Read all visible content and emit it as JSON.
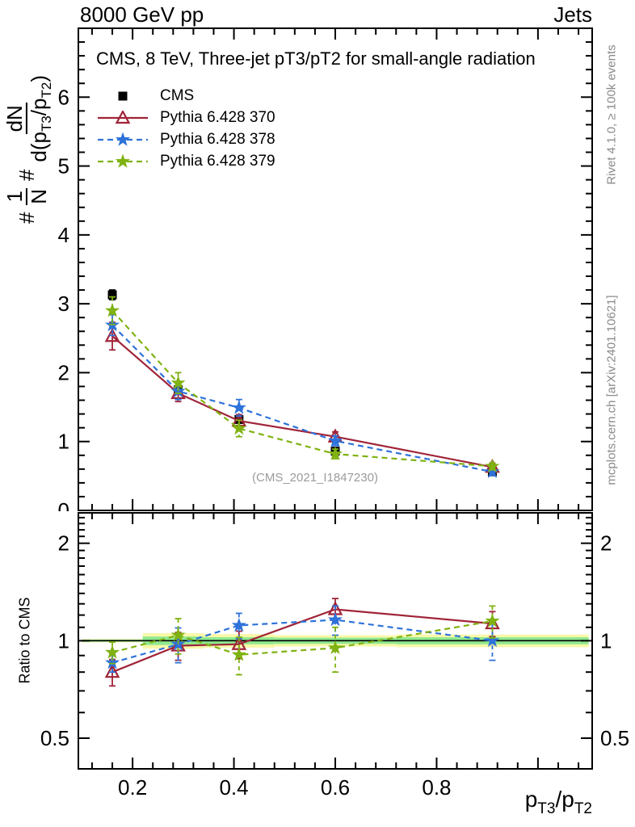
{
  "header": {
    "left": "8000 GeV pp",
    "right": "Jets"
  },
  "side_notes": {
    "top": "Rivet 4.1.0, ≥ 100k events",
    "bottom": "mcplots.cern.ch [arXiv:2401.10621]",
    "color": "#8a8a8a"
  },
  "chart_data": {
    "type": "line",
    "title": "CMS, 8 TeV, Three-jet pT3/pT2 for small-angle radiation",
    "watermark": "(CMS_2021_I1847230)",
    "watermark_color": "#9b9b9b",
    "xlabel": "p_T3/p_T2",
    "xlabel_parts": {
      "a": "p",
      "b": "T3",
      "c": "/p",
      "d": "T2"
    },
    "ylabel_main": "#1/N #dN/d(p_T3/p_T2)",
    "ylabel_main_parts": {
      "hash": "#",
      "n1": "1",
      "d1": "N",
      "n2": "dN",
      "d2a": "d(p",
      "d2b": "T3",
      "d2c": "/p",
      "d2d": "T2",
      "d2e": ")"
    },
    "ylabel_ratio": "Ratio to CMS",
    "axes": {
      "xmin": 0.093,
      "xmax": 1.107,
      "ymin": 0.0,
      "ymax": 7.0,
      "ratio_ymin": 0.402,
      "ratio_ymax": 2.483,
      "ratio_log": true,
      "x_major": [
        0.2,
        0.4,
        0.6,
        0.8,
        1.0
      ],
      "x_tick_labels": [
        "0.2",
        "0.4",
        "0.6",
        "0.8",
        ""
      ],
      "x_minor_step": 0.04,
      "main_y_major": [
        0,
        1,
        2,
        3,
        4,
        5,
        6
      ],
      "main_y_tick_labels": [
        "0",
        "1",
        "2",
        "3",
        "4",
        "5",
        "6"
      ],
      "main_y_minor_step": 0.2,
      "ratio_y_major": [
        0.5,
        1,
        2
      ],
      "ratio_y_tick_labels": [
        "0.5",
        "1",
        "2"
      ],
      "ratio_y_minor": [
        0.6,
        0.7,
        0.8,
        0.9,
        1.1,
        1.2,
        1.3,
        1.4,
        1.5,
        1.6,
        1.7,
        1.8,
        1.9,
        2.1,
        2.2,
        2.3,
        2.4
      ]
    },
    "x": [
      0.16,
      0.29,
      0.41,
      0.6,
      0.91
    ],
    "bin_edges": [
      0.1,
      0.22,
      0.34,
      0.48,
      0.72,
      1.1
    ],
    "series": [
      {
        "id": "cms",
        "label": "CMS",
        "color": "#000000",
        "marker": "square",
        "line_style": "none",
        "values": [
          3.13,
          1.75,
          1.32,
          0.86,
          0.56
        ],
        "errors": [
          0.07,
          0.05,
          0.04,
          0.035,
          0.025
        ]
      },
      {
        "id": "pythia-370",
        "label": "Pythia 6.428 370",
        "color": "#a02438",
        "marker": "triangle-open",
        "line_style": "solid",
        "values": [
          2.53,
          1.7,
          1.3,
          1.07,
          0.63
        ],
        "errors": [
          0.2,
          0.12,
          0.09,
          0.07,
          0.05
        ],
        "ratio": [
          0.8,
          0.965,
          0.975,
          1.25,
          1.13
        ],
        "ratio_errors": [
          0.075,
          0.095,
          0.095,
          0.1,
          0.1
        ]
      },
      {
        "id": "pythia-378",
        "label": "Pythia 6.428 378",
        "color": "#2e72da",
        "marker": "star",
        "line_style": "dashed",
        "values": [
          2.69,
          1.73,
          1.49,
          1.01,
          0.56
        ],
        "errors": [
          0.15,
          0.12,
          0.12,
          0.07,
          0.05
        ],
        "ratio": [
          0.855,
          0.975,
          1.115,
          1.16,
          1.0
        ],
        "ratio_errors": [
          0.055,
          0.12,
          0.1,
          0.12,
          0.13
        ]
      },
      {
        "id": "pythia-379",
        "label": "Pythia 6.428 379",
        "color": "#7fb212",
        "marker": "star",
        "line_style": "dashed",
        "values": [
          2.9,
          1.85,
          1.19,
          0.82,
          0.64
        ],
        "errors": [
          0.2,
          0.15,
          0.12,
          0.07,
          0.05
        ],
        "ratio": [
          0.92,
          1.04,
          0.905,
          0.95,
          1.15
        ],
        "ratio_errors": [
          0.07,
          0.13,
          0.12,
          0.15,
          0.13
        ]
      }
    ],
    "band_colors": {
      "outer": "#f8f8a8",
      "inner": "#8fe88f"
    },
    "uncertainty_bands": [
      {
        "x0": 0.1,
        "x1": 0.22,
        "outer": 0.012,
        "inner": 0.008
      },
      {
        "x0": 0.22,
        "x1": 0.34,
        "outer": 0.055,
        "inner": 0.03
      },
      {
        "x0": 0.34,
        "x1": 0.48,
        "outer": 0.048,
        "inner": 0.025
      },
      {
        "x0": 0.48,
        "x1": 0.72,
        "outer": 0.04,
        "inner": 0.022
      },
      {
        "x0": 0.72,
        "x1": 1.1,
        "outer": 0.045,
        "inner": 0.025
      }
    ]
  }
}
